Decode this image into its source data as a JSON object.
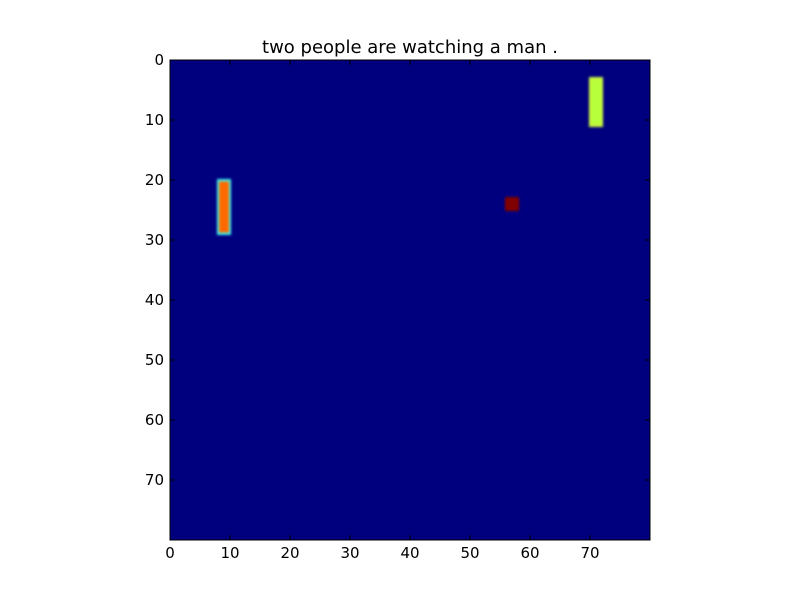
{
  "chart_data": {
    "type": "heatmap",
    "title": "two people are watching a man .",
    "xlabel": "",
    "ylabel": "",
    "xlim": [
      0,
      80
    ],
    "ylim": [
      80,
      0
    ],
    "x_ticks": [
      0,
      10,
      20,
      30,
      40,
      50,
      60,
      70
    ],
    "y_ticks": [
      0,
      10,
      20,
      30,
      40,
      50,
      60,
      70
    ],
    "grid": false,
    "colormap": "jet",
    "background_color": "#00007f",
    "cells": [
      {
        "x0": 8,
        "x1": 10,
        "y0": 20,
        "y1": 29,
        "color": "#ff6a00",
        "edge_color": "#3ff0e8"
      },
      {
        "x0": 70,
        "x1": 72,
        "y0": 3,
        "y1": 11,
        "color": "#b8ff3a",
        "edge_color": "#c8f040"
      },
      {
        "x0": 56,
        "x1": 58,
        "y0": 23,
        "y1": 25,
        "color": "#7f0000",
        "edge_color": "#7f0000"
      }
    ]
  }
}
